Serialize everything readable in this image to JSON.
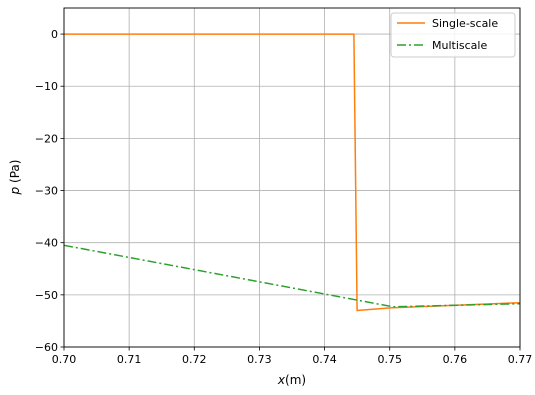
{
  "chart_data": {
    "type": "line",
    "xlabel_var": "x",
    "xlabel_unit": "(m)",
    "ylabel_var": "p",
    "ylabel_unit": "(Pa)",
    "xlim": [
      0.7,
      0.77
    ],
    "ylim": [
      -60,
      5
    ],
    "x_ticks": [
      0.7,
      0.71,
      0.72,
      0.73,
      0.74,
      0.75,
      0.76,
      0.77
    ],
    "x_tick_labels": [
      "0.70",
      "0.71",
      "0.72",
      "0.73",
      "0.74",
      "0.75",
      "0.76",
      "0.77"
    ],
    "y_ticks": [
      0,
      -10,
      -20,
      -30,
      -40,
      -50,
      -60
    ],
    "y_tick_labels": [
      "0",
      "−10",
      "−20",
      "−30",
      "−40",
      "−50",
      "−60"
    ],
    "grid": true,
    "legend_position": "top-right",
    "series": [
      {
        "name": "Single-scale",
        "color": "#ff7f0e",
        "dash": "solid",
        "x": [
          0.7,
          0.7445,
          0.745,
          0.75,
          0.77
        ],
        "y": [
          0.0,
          0.0,
          -53.0,
          -52.5,
          -51.5
        ]
      },
      {
        "name": "Multiscale",
        "color": "#2ca02c",
        "dash": "dashdot",
        "x": [
          0.7,
          0.7505,
          0.77
        ],
        "y": [
          -40.5,
          -52.3,
          -51.7
        ]
      }
    ]
  }
}
